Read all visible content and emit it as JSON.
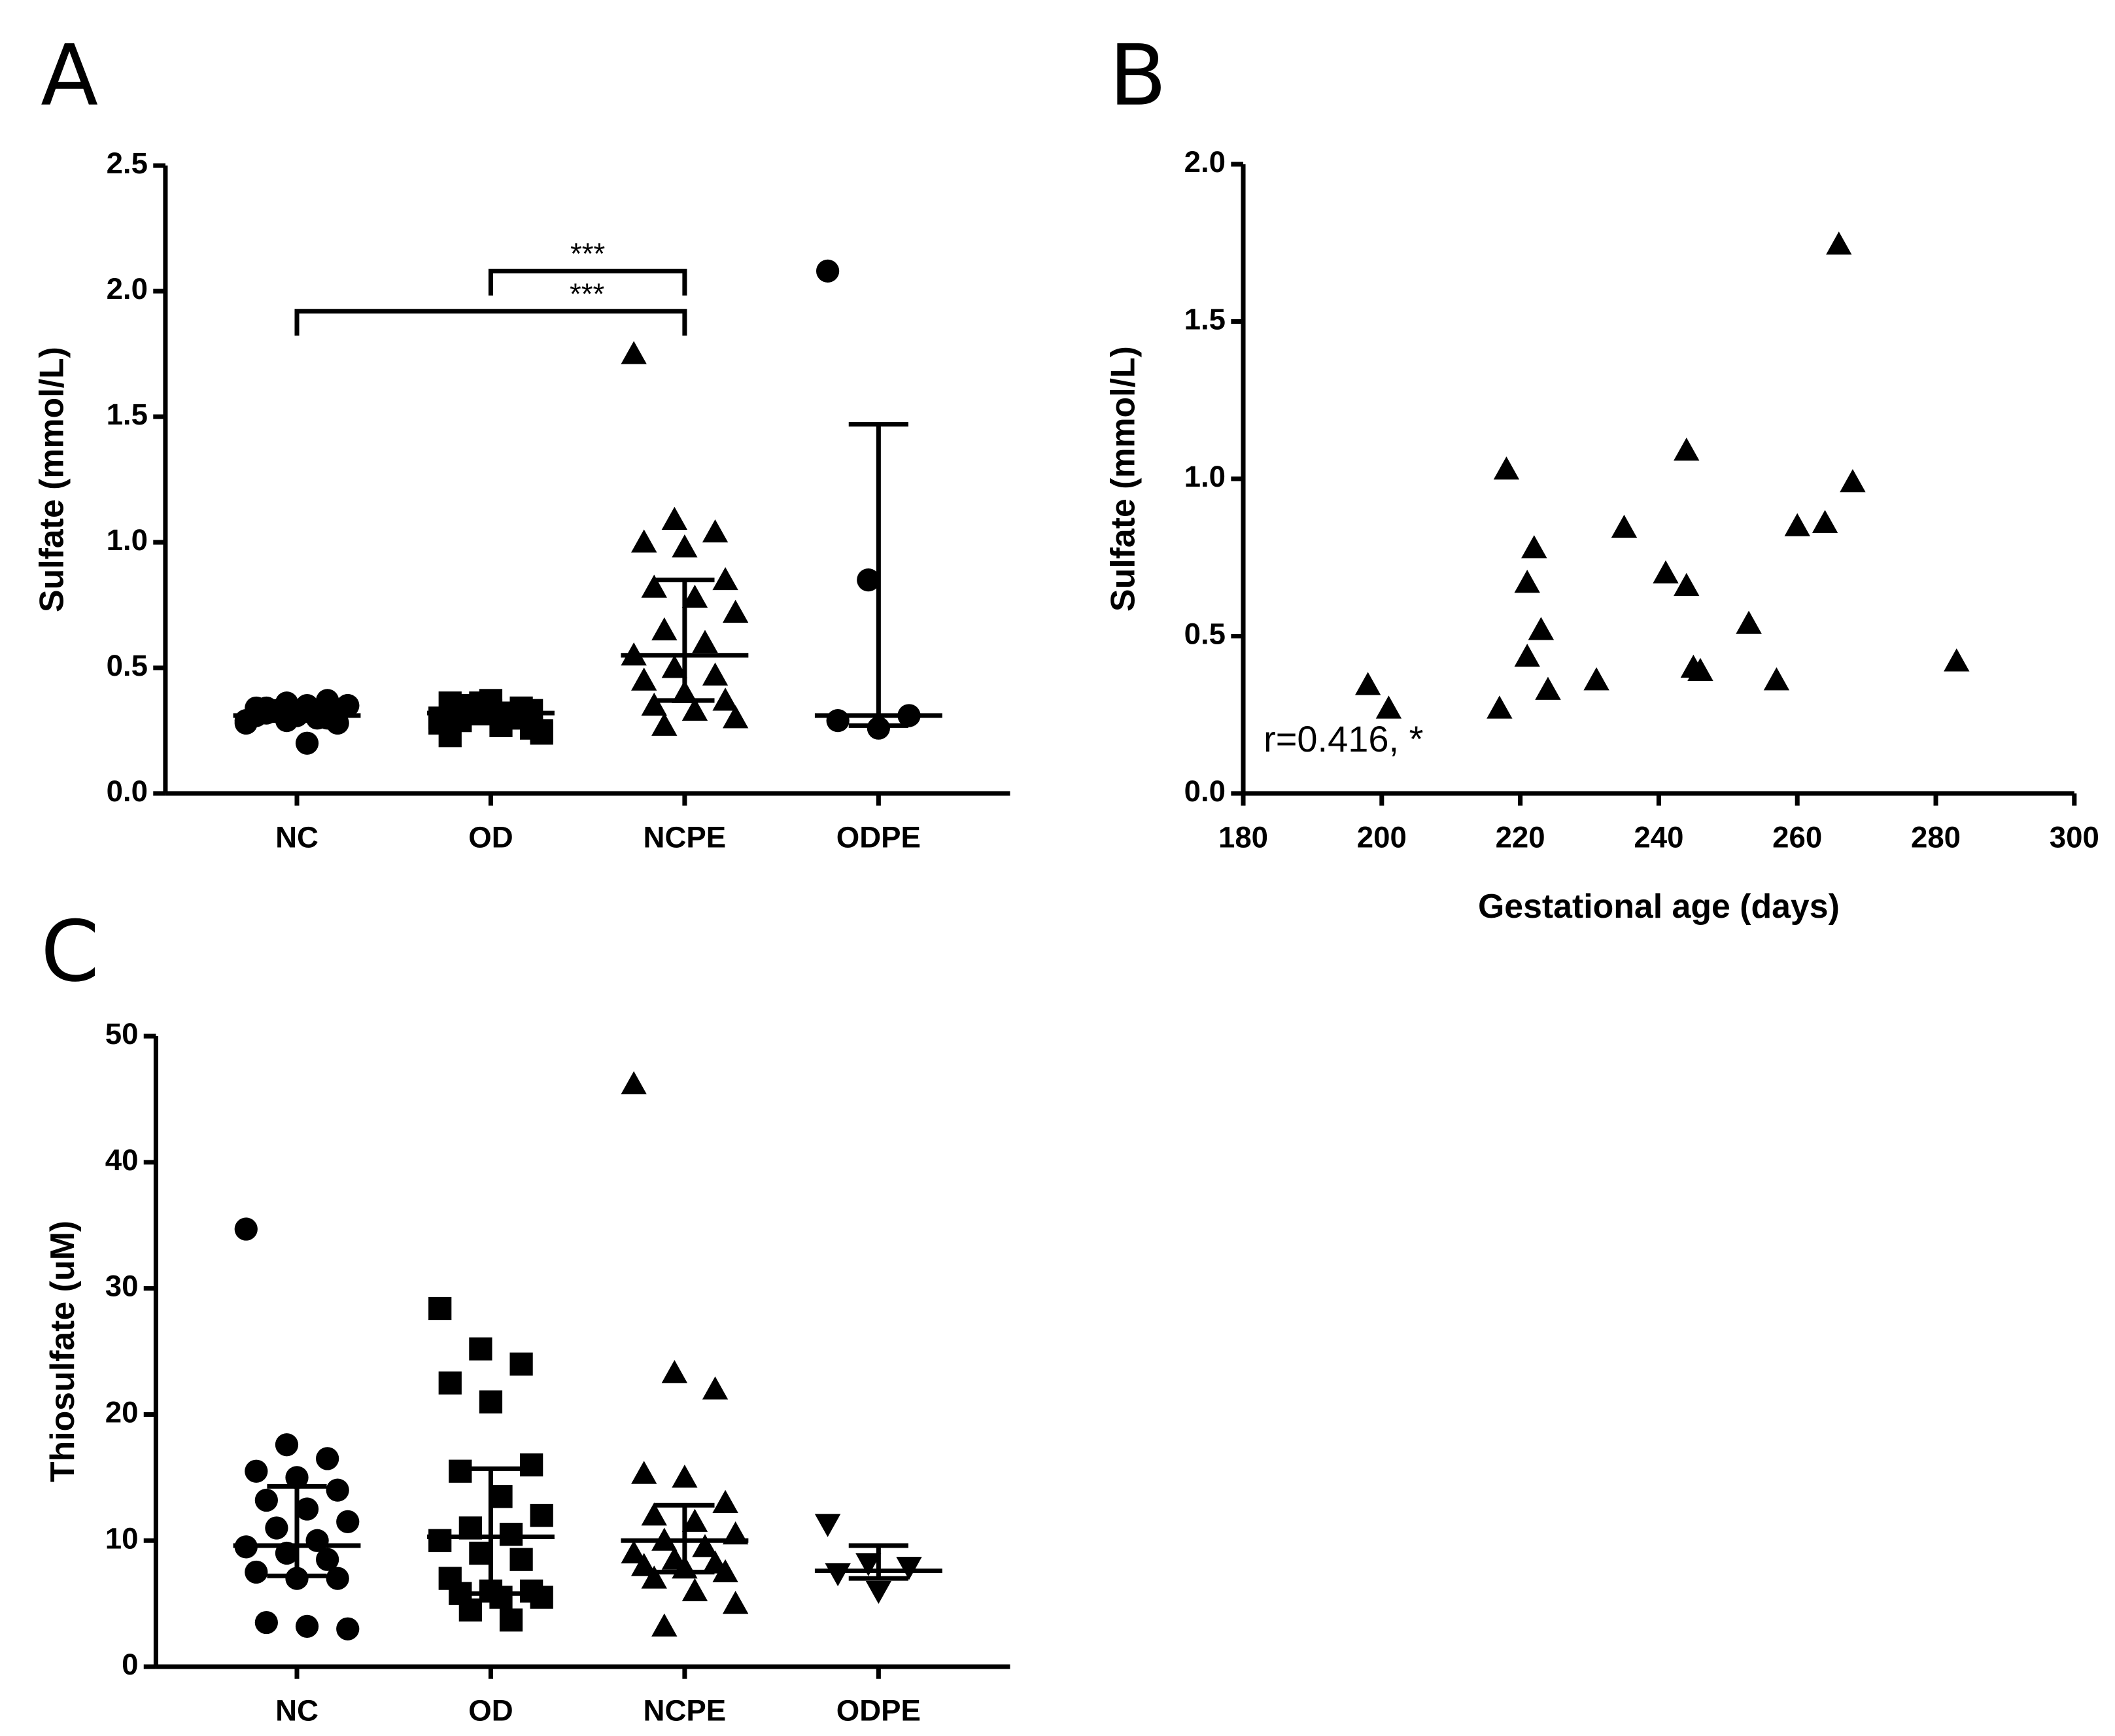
{
  "chart_data": [
    {
      "type": "strip",
      "panel_label": "A",
      "ylabel": "Sulfate (mmol/L)",
      "categories": [
        "NC",
        "OD",
        "NCPE",
        "ODPE"
      ],
      "markers": [
        "circle",
        "square",
        "triangle",
        "circle"
      ],
      "values": [
        [
          0.28,
          0.29,
          0.3,
          0.31,
          0.32,
          0.33,
          0.34,
          0.35,
          0.35,
          0.33,
          0.3,
          0.29,
          0.36,
          0.37,
          0.34,
          0.31,
          0.28,
          0.32,
          0.2,
          0.35
        ],
        [
          0.3,
          0.32,
          0.34,
          0.36,
          0.37,
          0.33,
          0.29,
          0.27,
          0.25,
          0.35,
          0.31,
          0.28,
          0.36,
          0.3,
          0.23,
          0.33,
          0.26,
          0.34,
          0.32,
          0.24
        ],
        [
          1.75,
          1.09,
          1.04,
          1.0,
          0.98,
          0.85,
          0.82,
          0.78,
          0.72,
          0.65,
          0.6,
          0.55,
          0.5,
          0.47,
          0.45,
          0.4,
          0.37,
          0.35,
          0.33,
          0.3,
          0.27
        ],
        [
          2.08,
          0.85,
          0.31,
          0.29,
          0.26
        ]
      ],
      "medians": [
        0.31,
        0.32,
        0.55,
        0.31
      ],
      "ranges": [
        [
          0.29,
          0.34
        ],
        [
          0.28,
          0.35
        ],
        [
          0.37,
          0.85
        ],
        [
          0.27,
          1.47
        ]
      ],
      "annotations": [
        {
          "from": "OD",
          "to": "NCPE",
          "y": 2.08,
          "label": "***"
        },
        {
          "from": "NC",
          "to": "NCPE",
          "y": 1.92,
          "label": "***"
        }
      ],
      "ylim": [
        0,
        2.5
      ],
      "yticks": [
        {
          "value": 0,
          "label": "0.0"
        },
        0.5,
        {
          "value": 1,
          "label": "1.0"
        },
        1.5,
        {
          "value": 2,
          "label": "2.0"
        },
        2.5
      ]
    },
    {
      "type": "scatter",
      "panel_label": "B",
      "ylabel": "Sulfate (mmol/L)",
      "xlabel": "Gestational age (days)",
      "marker": "triangle",
      "annotation": "r=0.416, *",
      "x": [
        198,
        201,
        217,
        218,
        221,
        221,
        222,
        223,
        224,
        231,
        235,
        241,
        244,
        244,
        245,
        246,
        253,
        257,
        260,
        264,
        266,
        268,
        283
      ],
      "values": [
        0.345,
        0.27,
        0.27,
        1.03,
        0.67,
        0.435,
        0.78,
        0.52,
        0.33,
        0.36,
        0.845,
        0.7,
        0.66,
        1.09,
        0.4,
        0.39,
        0.54,
        0.36,
        0.85,
        0.86,
        1.745,
        0.99,
        0.42
      ],
      "xlim": [
        180,
        300
      ],
      "xticks": [
        180,
        200,
        220,
        240,
        260,
        280,
        300
      ],
      "ylim": [
        0,
        2
      ],
      "yticks": [
        {
          "value": 0,
          "label": "0.0"
        },
        0.5,
        {
          "value": 1,
          "label": "1.0"
        },
        1.5,
        {
          "value": 2,
          "label": "2.0"
        }
      ]
    },
    {
      "type": "strip",
      "panel_label": "C",
      "ylabel": "Thiosulfate (uM)",
      "categories": [
        "NC",
        "OD",
        "NCPE",
        "ODPE"
      ],
      "markers": [
        "circle",
        "square",
        "triangle",
        "triangle-down"
      ],
      "values": [
        [
          34.7,
          17.6,
          16.5,
          15.5,
          15.0,
          14.0,
          13.2,
          12.5,
          11.5,
          11.0,
          10.0,
          9.5,
          9.0,
          8.5,
          7.5,
          7.0,
          7.0,
          3.5,
          3.2,
          3.0
        ],
        [
          28.4,
          25.2,
          24.0,
          22.5,
          21.0,
          16.0,
          15.5,
          13.5,
          12.0,
          11.0,
          10.5,
          10.0,
          9.0,
          8.5,
          7.0,
          6.0,
          6.0,
          5.8,
          5.5,
          5.5,
          4.5,
          3.7
        ],
        [
          46.2,
          23.3,
          22.0,
          15.3,
          15.0,
          13.0,
          12.0,
          11.5,
          10.5,
          10.0,
          9.5,
          9.0,
          8.5,
          8.2,
          8.0,
          7.8,
          7.5,
          7.0,
          6.0,
          5.0,
          3.2
        ],
        [
          11.3,
          8.2,
          7.9,
          7.4,
          6.0
        ]
      ],
      "medians": [
        9.6,
        10.3,
        10.0,
        7.6
      ],
      "ranges": [
        [
          7.2,
          14.3
        ],
        [
          5.8,
          15.7
        ],
        [
          7.5,
          12.8
        ],
        [
          7.0,
          9.6
        ]
      ],
      "ylim": [
        0,
        50
      ],
      "yticks": [
        0,
        10,
        20,
        30,
        40,
        50
      ]
    }
  ]
}
